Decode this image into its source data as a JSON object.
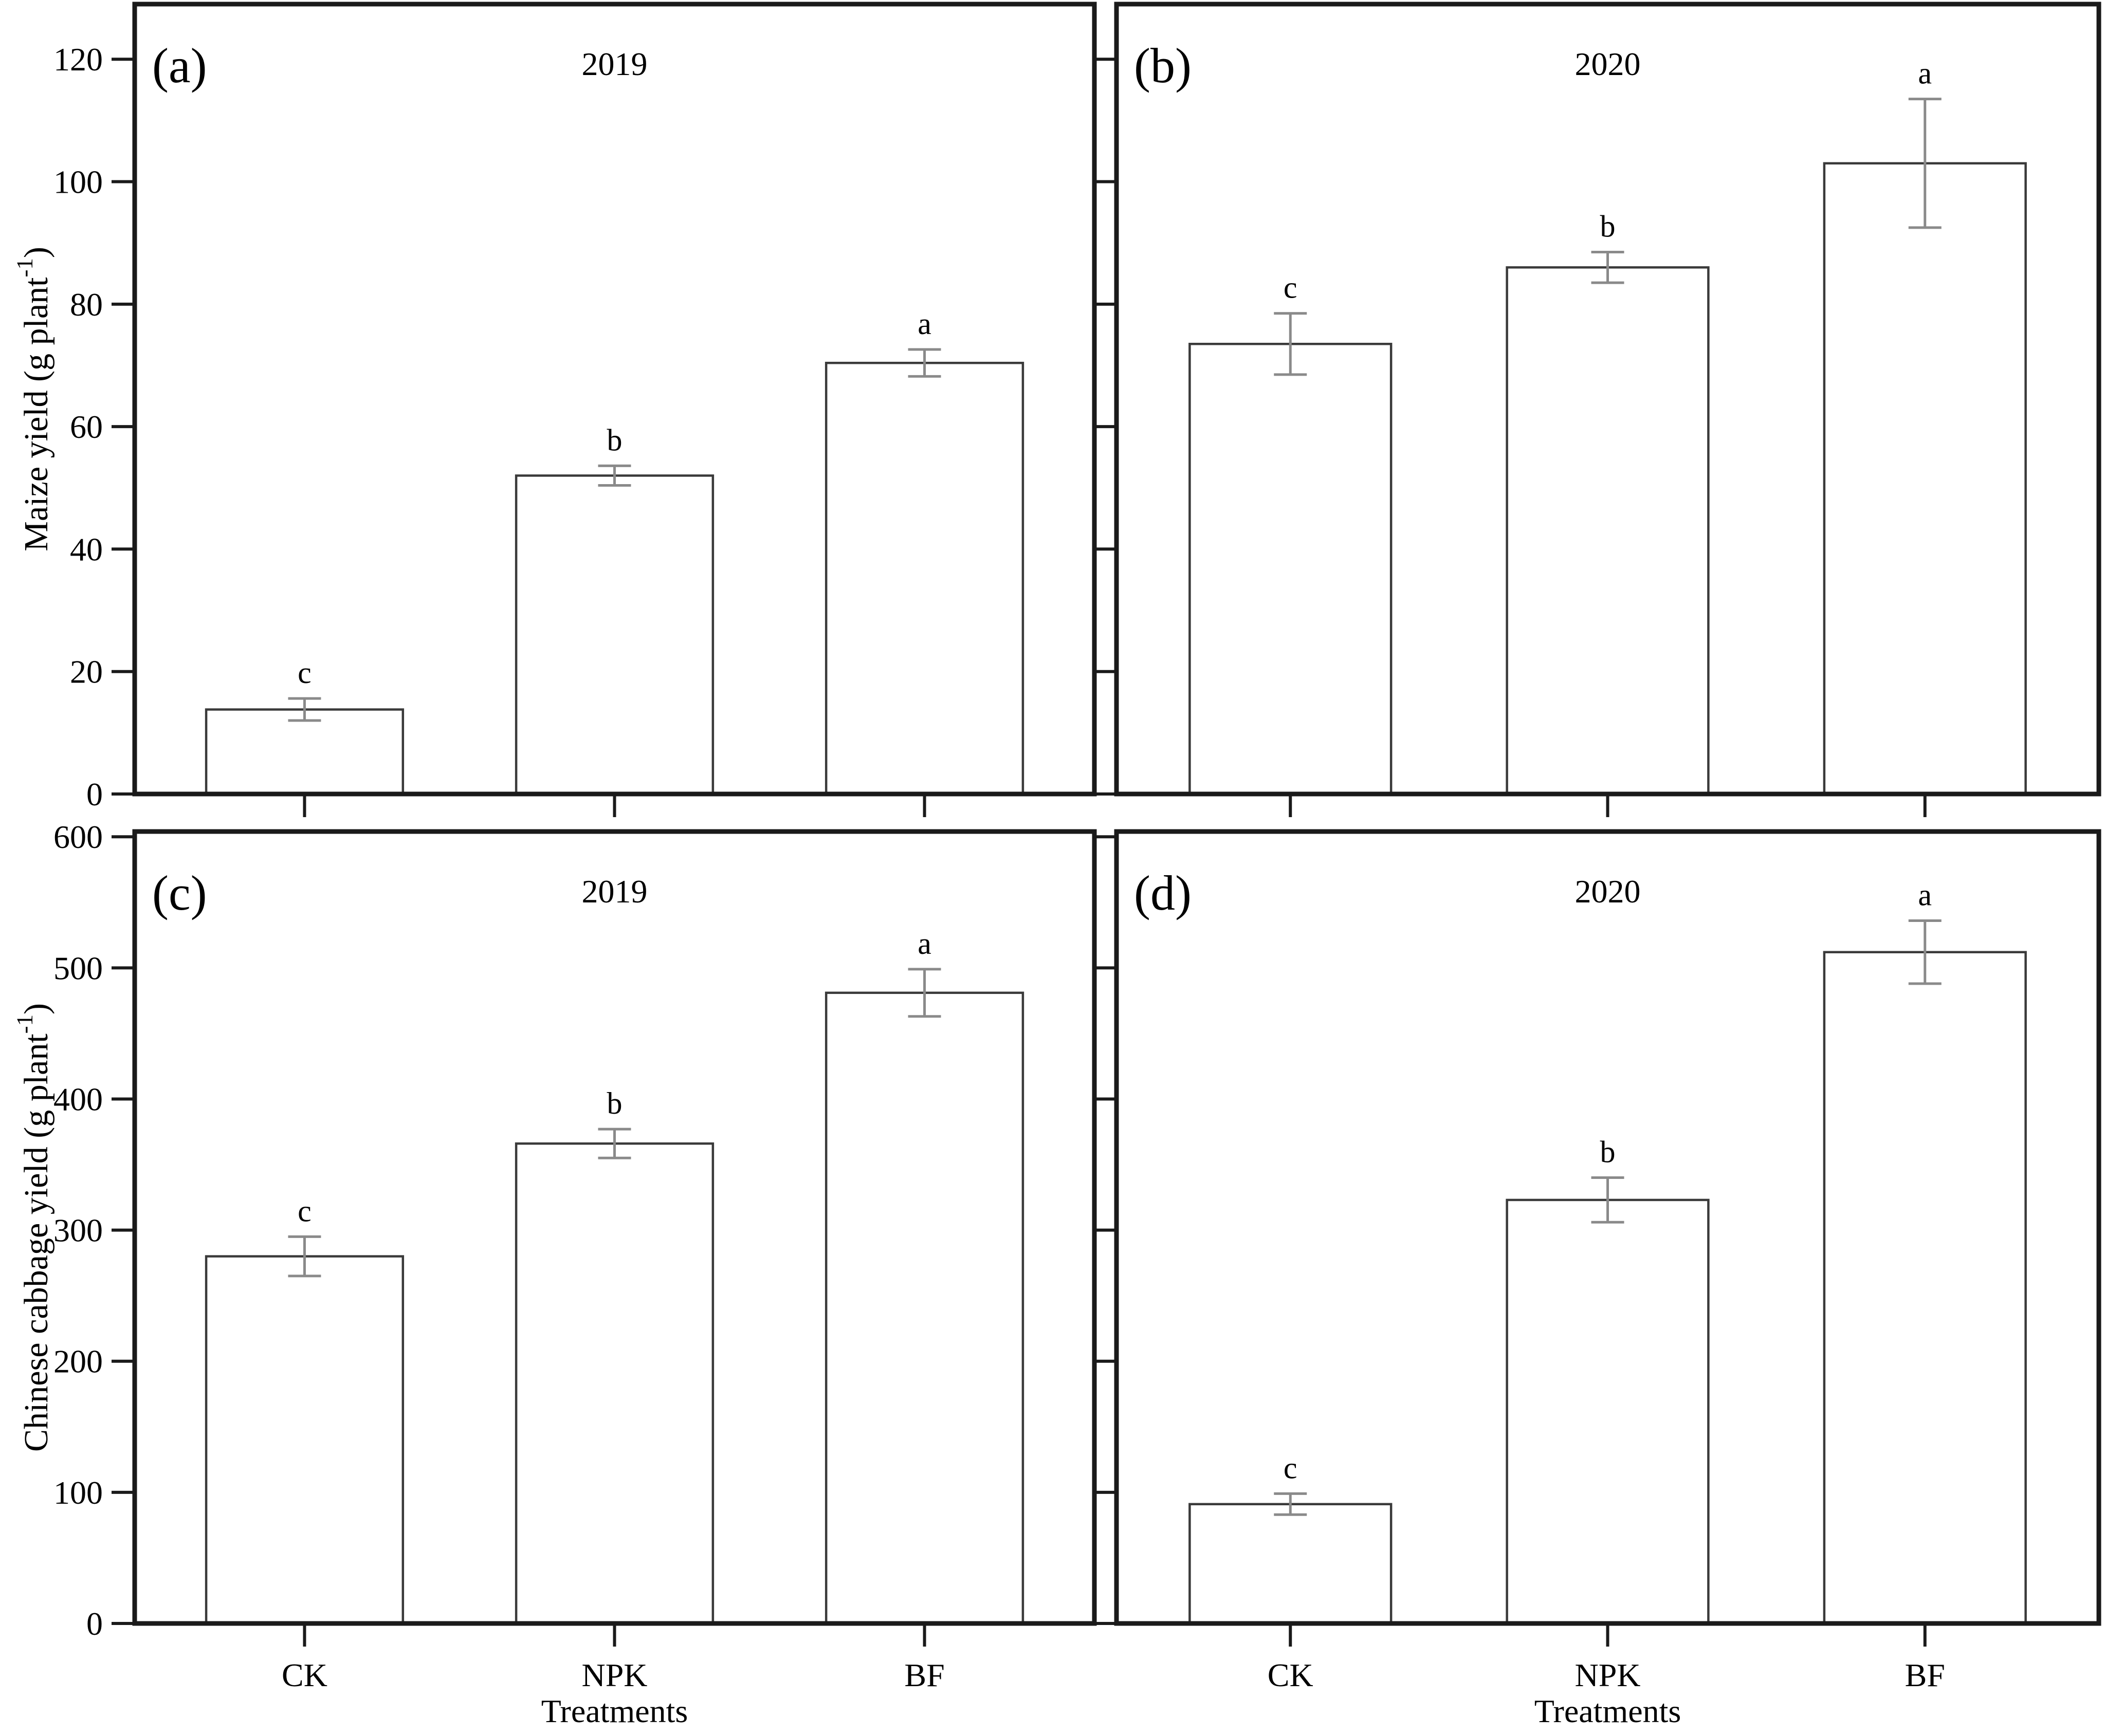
{
  "figure": {
    "background": "#ffffff",
    "spine_color": "#1a1a1a",
    "bar_fill": "#ffffff",
    "bar_edge_color": "#3a3a3a",
    "error_bar_color": "#8a8a8a",
    "text_color": "#000000",
    "shared_xlabel": "Treatments",
    "categories": [
      "CK",
      "NPK",
      "BF"
    ]
  },
  "chart_data": [
    {
      "type": "bar",
      "panel_label": "(a)",
      "title": "2019",
      "ylabel": "Maize yield (g plant⁻¹)",
      "xlabel": "",
      "categories": [
        "CK",
        "NPK",
        "BF"
      ],
      "values": [
        13.8,
        52.0,
        70.4
      ],
      "errors": [
        1.8,
        1.6,
        2.2
      ],
      "sig_letters": [
        "c",
        "b",
        "a"
      ],
      "ylim": [
        0,
        129
      ],
      "yticks": [
        0,
        20,
        40,
        60,
        80,
        100,
        120
      ],
      "show_ytick_labels": true,
      "show_xtick_labels": false,
      "grid": "off",
      "legend": "none"
    },
    {
      "type": "bar",
      "panel_label": "(b)",
      "title": "2020",
      "ylabel": "",
      "xlabel": "",
      "categories": [
        "CK",
        "NPK",
        "BF"
      ],
      "values": [
        73.5,
        86.0,
        103.0
      ],
      "errors": [
        5.0,
        2.5,
        10.5
      ],
      "sig_letters": [
        "c",
        "b",
        "a"
      ],
      "ylim": [
        0,
        129
      ],
      "yticks": [
        0,
        20,
        40,
        60,
        80,
        100,
        120
      ],
      "show_ytick_labels": false,
      "show_xtick_labels": false,
      "grid": "off",
      "legend": "none"
    },
    {
      "type": "bar",
      "panel_label": "(c)",
      "title": "2019",
      "ylabel": "Chinese cabbage yield (g plant⁻¹)",
      "xlabel": "Treatments",
      "categories": [
        "CK",
        "NPK",
        "BF"
      ],
      "values": [
        280,
        366,
        481
      ],
      "errors": [
        15,
        11,
        18
      ],
      "sig_letters": [
        "c",
        "b",
        "a"
      ],
      "ylim": [
        0,
        604
      ],
      "yticks": [
        0,
        100,
        200,
        300,
        400,
        500,
        600
      ],
      "show_ytick_labels": true,
      "show_xtick_labels": true,
      "grid": "off",
      "legend": "none"
    },
    {
      "type": "bar",
      "panel_label": "(d)",
      "title": "2020",
      "ylabel": "",
      "xlabel": "Treatments",
      "categories": [
        "CK",
        "NPK",
        "BF"
      ],
      "values": [
        91,
        323,
        512
      ],
      "errors": [
        8,
        17,
        24
      ],
      "sig_letters": [
        "c",
        "b",
        "a"
      ],
      "ylim": [
        0,
        604
      ],
      "yticks": [
        0,
        100,
        200,
        300,
        400,
        500,
        600
      ],
      "show_ytick_labels": false,
      "show_xtick_labels": true,
      "grid": "off",
      "legend": "none"
    }
  ]
}
